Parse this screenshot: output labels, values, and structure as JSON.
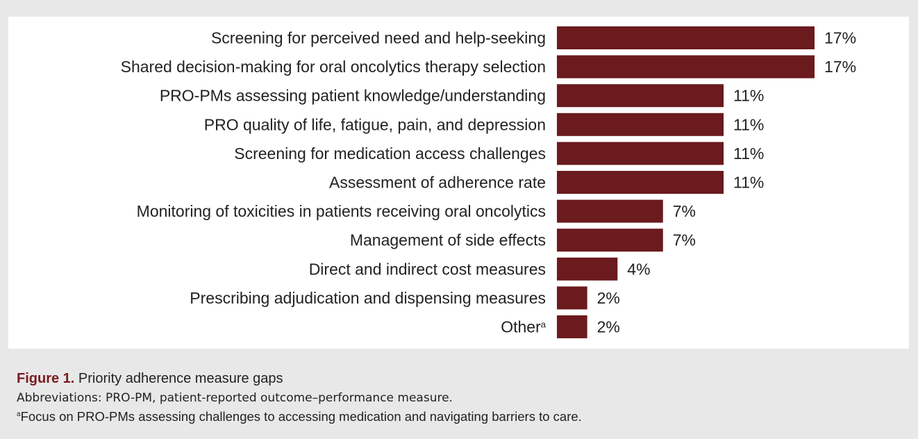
{
  "chart_data": {
    "type": "bar",
    "orientation": "horizontal",
    "categories": [
      "Screening for perceived need and help-seeking",
      "Shared decision-making for oral oncolytics therapy selection",
      "PRO-PMs assessing patient knowledge/understanding",
      "PRO quality of life, fatigue, pain, and depression",
      "Screening for medication access challenges",
      "Assessment of adherence rate",
      "Monitoring of toxicities in patients receiving oral oncolytics",
      "Management of side effects",
      "Direct and indirect cost measures",
      "Prescribing adjudication and dispensing measures",
      "Other"
    ],
    "category_superscripts": [
      "",
      "",
      "",
      "",
      "",
      "",
      "",
      "",
      "",
      "",
      "a"
    ],
    "values": [
      17,
      17,
      11,
      11,
      11,
      11,
      7,
      7,
      4,
      2,
      2
    ],
    "value_labels": [
      "17%",
      "17%",
      "11%",
      "11%",
      "11%",
      "11%",
      "7%",
      "7%",
      "4%",
      "2%",
      "2%"
    ],
    "unit": "%",
    "xlim": [
      0,
      17
    ],
    "bar_color": "#6b1a1d"
  },
  "caption": {
    "figure_label": "Figure 1.",
    "title": "Priority adherence measure gaps",
    "abbreviations": "Abbreviations: PRO-PM, patient-reported outcome–performance measure.",
    "footnote_mark": "a",
    "footnote": "Focus on PRO-PMs assessing challenges to accessing medication and navigating barriers to care."
  }
}
